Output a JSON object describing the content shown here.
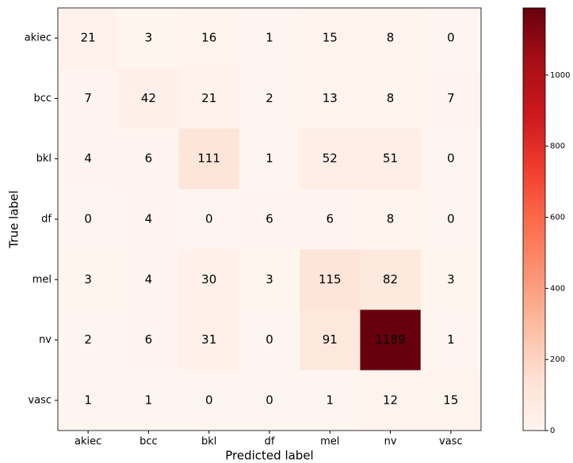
{
  "chart_data": {
    "type": "heatmap",
    "x_label": "Predicted label",
    "y_label": "True label",
    "x_categories": [
      "akiec",
      "bcc",
      "bkl",
      "df",
      "mel",
      "nv",
      "vasc"
    ],
    "y_categories": [
      "akiec",
      "bcc",
      "bkl",
      "df",
      "mel",
      "nv",
      "vasc"
    ],
    "values": [
      [
        21,
        3,
        16,
        1,
        15,
        8,
        0
      ],
      [
        7,
        42,
        21,
        2,
        13,
        8,
        7
      ],
      [
        4,
        6,
        111,
        1,
        52,
        51,
        0
      ],
      [
        0,
        4,
        0,
        6,
        6,
        8,
        0
      ],
      [
        3,
        4,
        30,
        3,
        115,
        82,
        3
      ],
      [
        2,
        6,
        31,
        0,
        91,
        1189,
        1
      ],
      [
        1,
        1,
        0,
        0,
        1,
        12,
        15
      ]
    ],
    "colormap": "Reds",
    "zlim": [
      0,
      1189
    ],
    "colorbar_ticks": [
      0,
      200,
      400,
      600,
      800,
      1000
    ]
  }
}
